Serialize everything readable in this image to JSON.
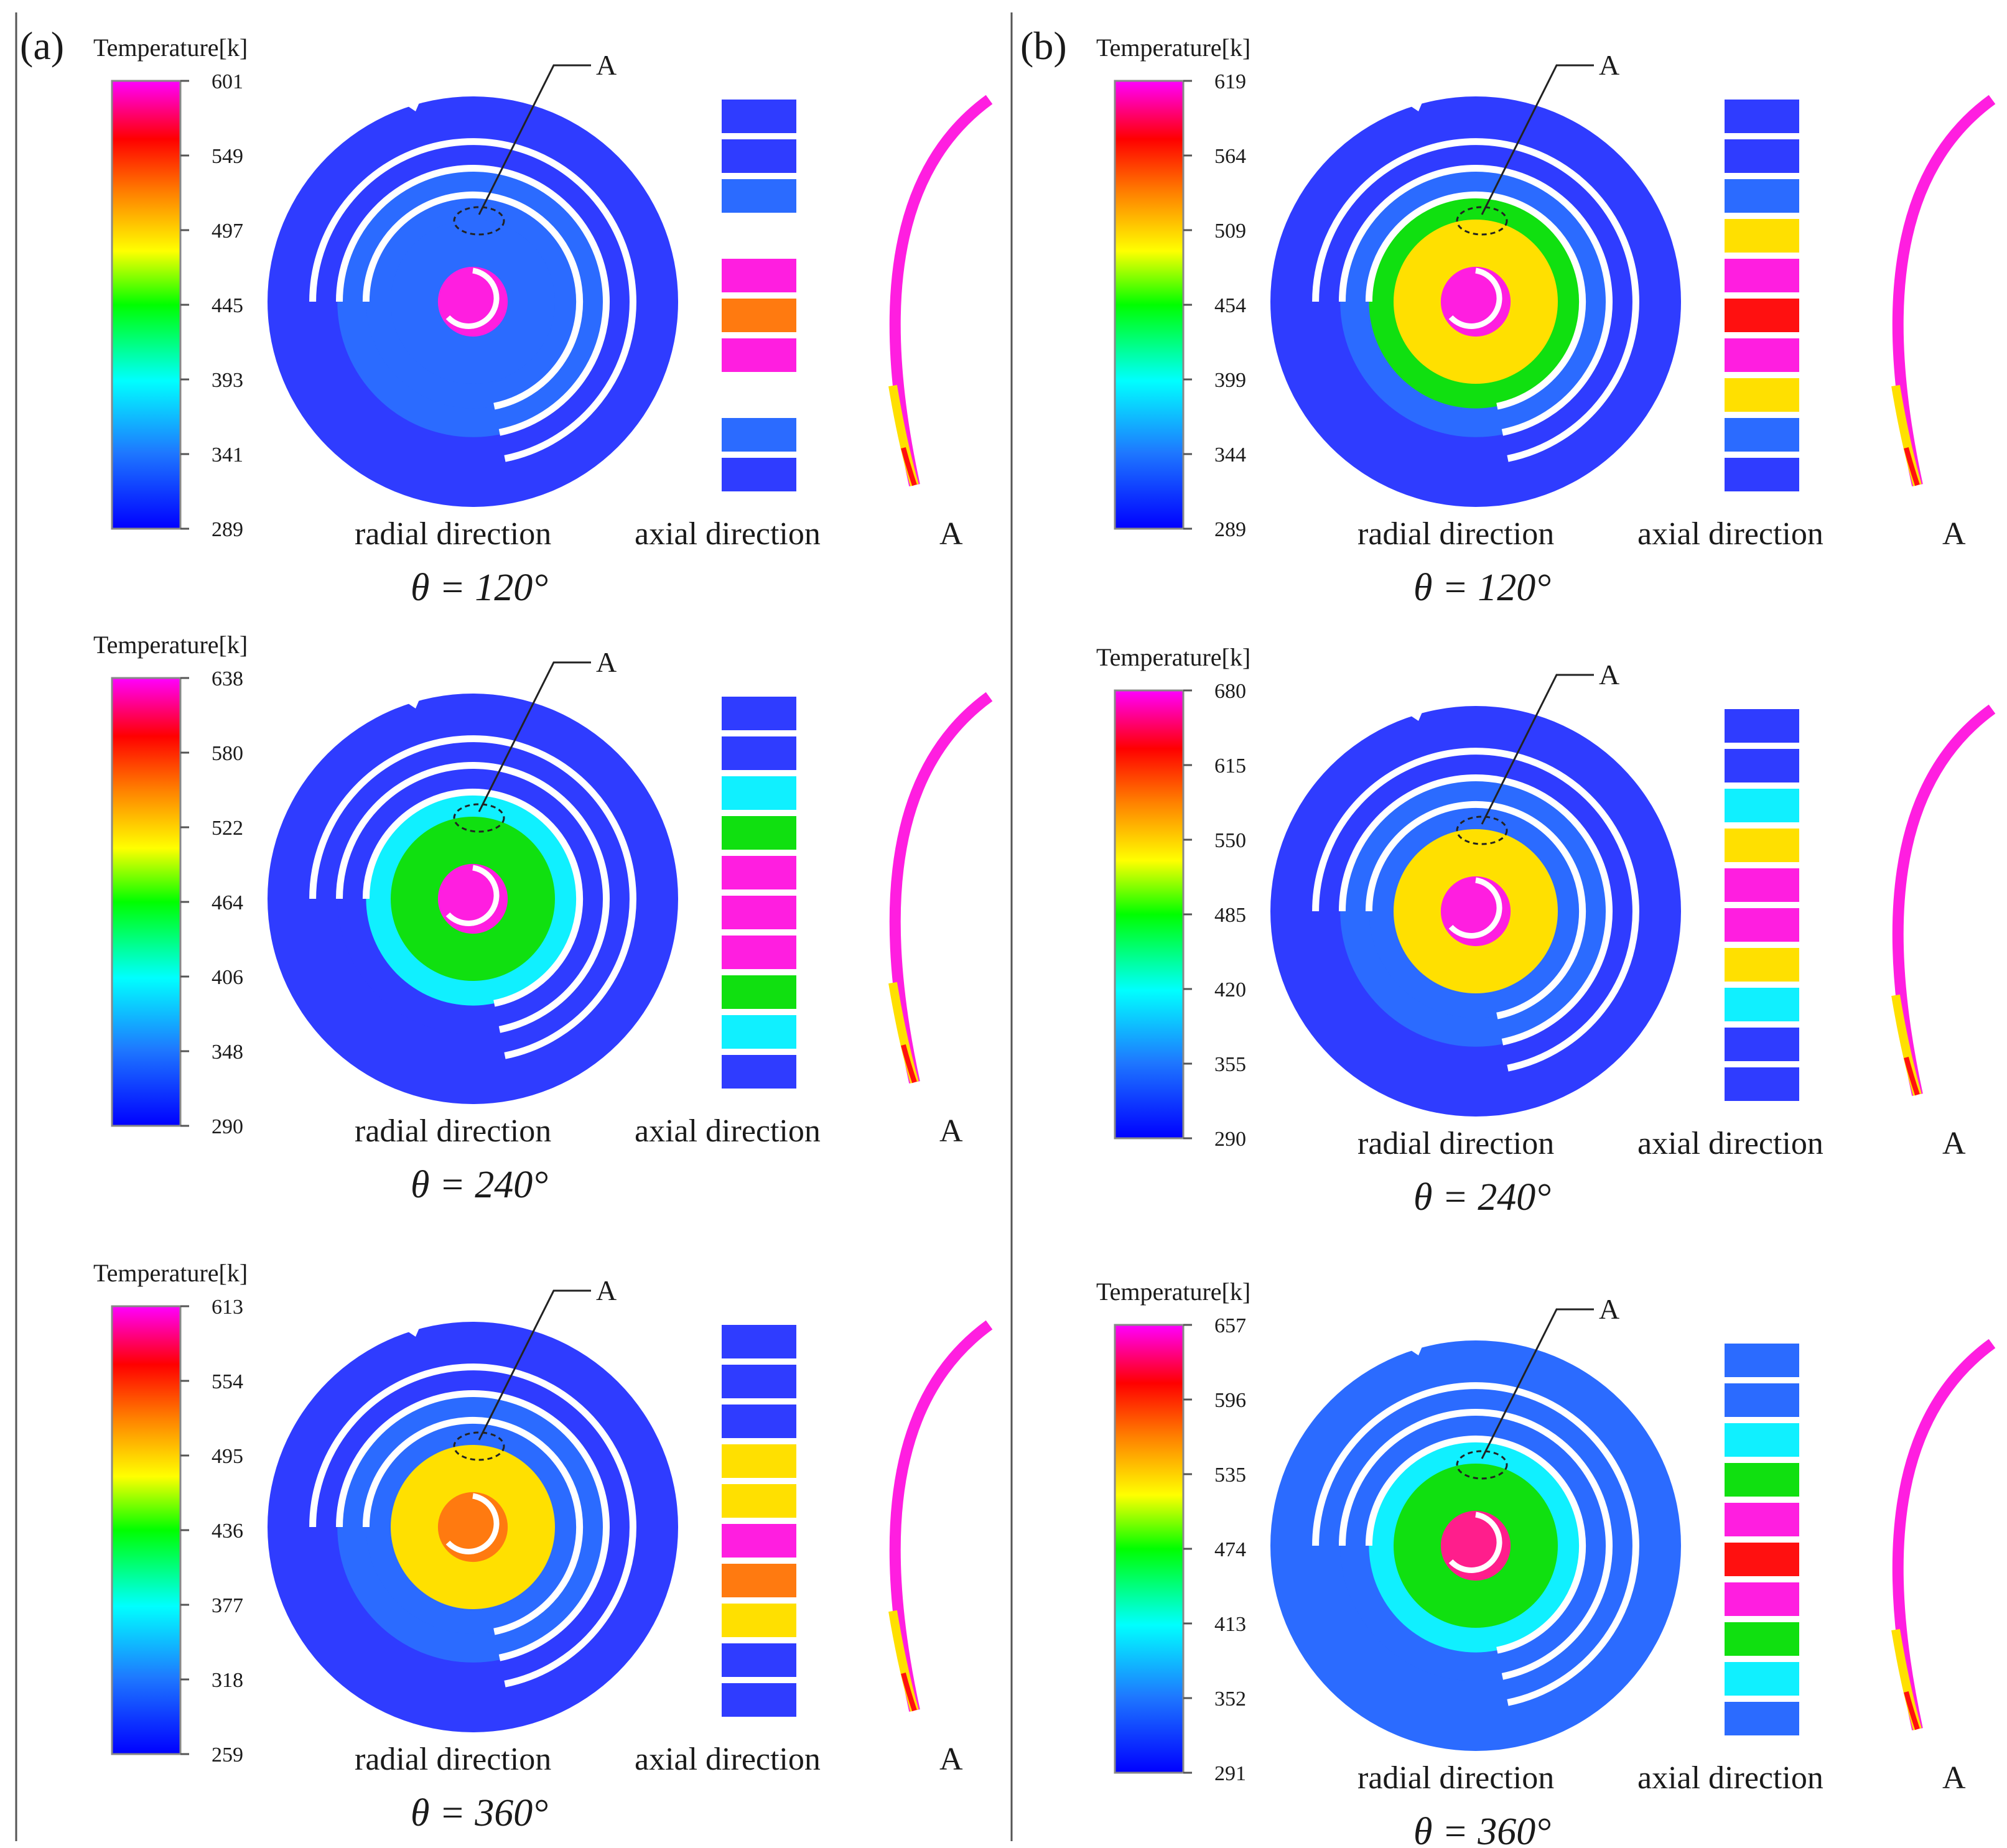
{
  "figure": {
    "columns": [
      {
        "label": "(a)",
        "panels": [
          {
            "colorbar": {
              "title": "Temperature[k]",
              "ticks": [
                "601",
                "549",
                "497",
                "445",
                "393",
                "341",
                "289"
              ]
            },
            "callout": "A",
            "labels": {
              "radial": "radial direction",
              "axial": "axial direction",
              "detail": "A"
            },
            "angle": "θ = 120°"
          },
          {
            "colorbar": {
              "title": "Temperature[k]",
              "ticks": [
                "638",
                "580",
                "522",
                "464",
                "406",
                "348",
                "290"
              ]
            },
            "callout": "A",
            "labels": {
              "radial": "radial direction",
              "axial": "axial direction",
              "detail": "A"
            },
            "angle": "θ = 240°"
          },
          {
            "colorbar": {
              "title": "Temperature[k]",
              "ticks": [
                "613",
                "554",
                "495",
                "436",
                "377",
                "318",
                "259"
              ]
            },
            "callout": "A",
            "labels": {
              "radial": "radial direction",
              "axial": "axial direction",
              "detail": "A"
            },
            "angle": "θ = 360°"
          }
        ]
      },
      {
        "label": "(b)",
        "panels": [
          {
            "colorbar": {
              "title": "Temperature[k]",
              "ticks": [
                "619",
                "564",
                "509",
                "454",
                "399",
                "344",
                "289"
              ]
            },
            "callout": "A",
            "labels": {
              "radial": "radial direction",
              "axial": "axial direction",
              "detail": "A"
            },
            "angle": "θ = 120°"
          },
          {
            "colorbar": {
              "title": "Temperature[k]",
              "ticks": [
                "680",
                "615",
                "550",
                "485",
                "420",
                "355",
                "290"
              ]
            },
            "callout": "A",
            "labels": {
              "radial": "radial direction",
              "axial": "axial direction",
              "detail": "A"
            },
            "angle": "θ = 240°"
          },
          {
            "colorbar": {
              "title": "Temperature[k]",
              "ticks": [
                "657",
                "596",
                "535",
                "474",
                "413",
                "352",
                "291"
              ]
            },
            "callout": "A",
            "labels": {
              "radial": "radial direction",
              "axial": "axial direction",
              "detail": "A"
            },
            "angle": "θ = 360°"
          }
        ]
      }
    ]
  },
  "colors": {
    "magenta": "#ff1ee0",
    "red": "#ff1010",
    "orange": "#ff7a10",
    "yellow": "#ffe000",
    "green": "#10e010",
    "cyan": "#10f0ff",
    "blue": "#2b6bff",
    "deep_blue": "#2f3cff",
    "text": "#1a1a1a"
  }
}
